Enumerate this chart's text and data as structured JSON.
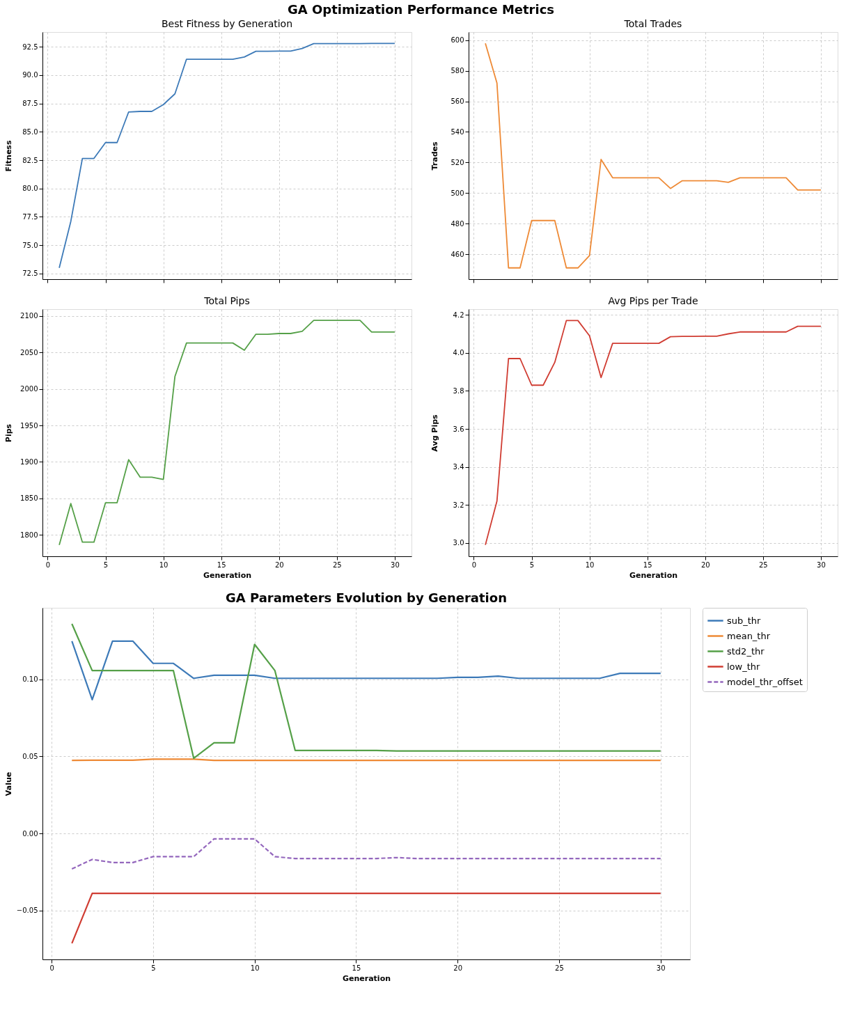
{
  "chart_data": [
    {
      "type": "other",
      "title": "GA Optimization Performance Metrics"
    },
    {
      "type": "line",
      "title": "Best Fitness by Generation",
      "ylabel": "Fitness",
      "x": [
        1,
        2,
        3,
        4,
        5,
        6,
        7,
        8,
        9,
        10,
        11,
        12,
        13,
        14,
        15,
        16,
        17,
        18,
        19,
        20,
        21,
        22,
        23,
        24,
        25,
        26,
        27,
        28,
        29,
        30
      ],
      "series": [
        {
          "color": "#3d7ab8",
          "values": [
            73.0,
            77.1,
            82.65,
            82.65,
            84.05,
            84.05,
            86.75,
            86.8,
            86.8,
            87.4,
            88.35,
            91.4,
            91.4,
            91.4,
            91.4,
            91.4,
            91.6,
            92.1,
            92.1,
            92.12,
            92.12,
            92.35,
            92.78,
            92.78,
            92.78,
            92.78,
            92.78,
            92.8,
            92.8,
            92.8
          ]
        }
      ],
      "xlim": [
        -0.45,
        31.45
      ],
      "xticks": [
        0,
        5,
        10,
        15,
        20,
        25,
        30
      ],
      "ylim": [
        72.0,
        93.8
      ],
      "yticks": [
        72.5,
        {
          "value": 75,
          "label": "75.0"
        },
        77.5,
        {
          "value": 80,
          "label": "80.0"
        },
        82.5,
        {
          "value": 85,
          "label": "85.0"
        },
        87.5,
        {
          "value": 90,
          "label": "90.0"
        },
        92.5
      ],
      "grid": true,
      "tick_labels": "y"
    },
    {
      "type": "line",
      "title": "Total Trades",
      "ylabel": "Trades",
      "x": [
        1,
        2,
        3,
        4,
        5,
        6,
        7,
        8,
        9,
        10,
        11,
        12,
        13,
        14,
        15,
        16,
        17,
        18,
        19,
        20,
        21,
        22,
        23,
        24,
        25,
        26,
        27,
        28,
        29,
        30
      ],
      "series": [
        {
          "color": "#ee8a36",
          "values": [
            598,
            572,
            451,
            451,
            482,
            482,
            482,
            451,
            451,
            459,
            522,
            510,
            510,
            510,
            510,
            510,
            503,
            508,
            508,
            508,
            508,
            507,
            510,
            510,
            510,
            510,
            510,
            502,
            502,
            502
          ]
        }
      ],
      "xlim": [
        -0.45,
        31.45
      ],
      "xticks": [
        0,
        5,
        10,
        15,
        20,
        25,
        30
      ],
      "ylim": [
        443.6,
        605.4
      ],
      "yticks": [
        460,
        480,
        500,
        520,
        540,
        560,
        580,
        600
      ],
      "grid": true,
      "tick_labels": "y"
    },
    {
      "type": "line",
      "title": "Total Pips",
      "xlabel": "Generation",
      "ylabel": "Pips",
      "x": [
        1,
        2,
        3,
        4,
        5,
        6,
        7,
        8,
        9,
        10,
        11,
        12,
        13,
        14,
        15,
        16,
        17,
        18,
        19,
        20,
        21,
        22,
        23,
        24,
        25,
        26,
        27,
        28,
        29,
        30
      ],
      "series": [
        {
          "color": "#55a048",
          "values": [
            1786,
            1843,
            1790,
            1790,
            1844,
            1844,
            1903,
            1879,
            1879,
            1876,
            2017,
            2063,
            2063,
            2063,
            2063,
            2063,
            2053,
            2075,
            2075,
            2076,
            2076,
            2079,
            2094,
            2094,
            2094,
            2094,
            2094,
            2078,
            2078,
            2078
          ]
        }
      ],
      "xlim": [
        -0.45,
        31.45
      ],
      "xticks": [
        0,
        5,
        10,
        15,
        20,
        25,
        30
      ],
      "ylim": [
        1770.6,
        2109.4
      ],
      "yticks": [
        1800,
        1850,
        1900,
        1950,
        2000,
        2050,
        2100
      ],
      "grid": true
    },
    {
      "type": "line",
      "title": "Avg Pips per Trade",
      "xlabel": "Generation",
      "ylabel": "Avg Pips",
      "x": [
        1,
        2,
        3,
        4,
        5,
        6,
        7,
        8,
        9,
        10,
        11,
        12,
        13,
        14,
        15,
        16,
        17,
        18,
        19,
        20,
        21,
        22,
        23,
        24,
        25,
        26,
        27,
        28,
        29,
        30
      ],
      "series": [
        {
          "color": "#d03c32",
          "values": [
            2.99,
            3.22,
            3.97,
            3.97,
            3.83,
            3.83,
            3.95,
            4.17,
            4.17,
            4.09,
            3.87,
            4.05,
            4.05,
            4.05,
            4.05,
            4.05,
            4.085,
            4.087,
            4.087,
            4.088,
            4.088,
            4.1,
            4.11,
            4.11,
            4.11,
            4.11,
            4.11,
            4.14,
            4.14,
            4.14
          ]
        }
      ],
      "xlim": [
        -0.45,
        31.45
      ],
      "xticks": [
        0,
        5,
        10,
        15,
        20,
        25,
        30
      ],
      "ylim": [
        2.93,
        4.23
      ],
      "yticks": [
        {
          "value": 3.0,
          "label": "3.0"
        },
        3.2,
        3.4,
        3.6,
        3.8,
        {
          "value": 4.0,
          "label": "4.0"
        },
        4.2
      ],
      "grid": true
    },
    {
      "type": "line",
      "title": "GA Parameters Evolution by Generation",
      "xlabel": "Generation",
      "ylabel": "Value",
      "x": [
        1,
        2,
        3,
        4,
        5,
        6,
        7,
        8,
        9,
        10,
        11,
        12,
        13,
        14,
        15,
        16,
        17,
        18,
        19,
        20,
        21,
        22,
        23,
        24,
        25,
        26,
        27,
        28,
        29,
        30
      ],
      "series": [
        {
          "name": "sub_thr",
          "color": "#3d7ab8",
          "values": [
            0.1247,
            0.0868,
            0.1247,
            0.1247,
            0.1103,
            0.1103,
            0.1006,
            0.1026,
            0.1026,
            0.1026,
            0.1006,
            0.1006,
            0.1006,
            0.1006,
            0.1006,
            0.1006,
            0.1006,
            0.1006,
            0.1006,
            0.1012,
            0.1012,
            0.102,
            0.1006,
            0.1006,
            0.1006,
            0.1006,
            0.1006,
            0.1038,
            0.1038,
            0.1038
          ]
        },
        {
          "name": "mean_thr",
          "color": "#ee8a36",
          "values": [
            0.0474,
            0.0475,
            0.0475,
            0.0475,
            0.0482,
            0.0482,
            0.0482,
            0.0474,
            0.0474,
            0.0474,
            0.0474,
            0.0474,
            0.0474,
            0.0474,
            0.0474,
            0.0474,
            0.0474,
            0.0474,
            0.0474,
            0.0474,
            0.0474,
            0.0474,
            0.0474,
            0.0474,
            0.0474,
            0.0474,
            0.0474,
            0.0474,
            0.0474,
            0.0474
          ]
        },
        {
          "name": "std2_thr",
          "color": "#55a048",
          "values": [
            0.1359,
            0.1056,
            0.1056,
            0.1056,
            0.1056,
            0.1056,
            0.0488,
            0.0588,
            0.0588,
            0.1226,
            0.1056,
            0.0538,
            0.0538,
            0.0538,
            0.0538,
            0.0538,
            0.0535,
            0.0535,
            0.0535,
            0.0535,
            0.0535,
            0.0535,
            0.0535,
            0.0535,
            0.0535,
            0.0535,
            0.0535,
            0.0535,
            0.0535,
            0.0535
          ]
        },
        {
          "name": "low_thr",
          "color": "#d03c32",
          "values": [
            -0.0712,
            -0.0388,
            -0.0388,
            -0.0388,
            -0.0388,
            -0.0388,
            -0.0388,
            -0.0388,
            -0.0388,
            -0.0388,
            -0.0388,
            -0.0388,
            -0.0388,
            -0.0388,
            -0.0388,
            -0.0388,
            -0.0388,
            -0.0388,
            -0.0388,
            -0.0388,
            -0.0388,
            -0.0388,
            -0.0388,
            -0.0388,
            -0.0388,
            -0.0388,
            -0.0388,
            -0.0388,
            -0.0388,
            -0.0388
          ]
        },
        {
          "name": "model_thr_offset",
          "color": "#9467bd",
          "line_style": "dashed",
          "values": [
            -0.0229,
            -0.0168,
            -0.0188,
            -0.0188,
            -0.015,
            -0.015,
            -0.015,
            -0.0035,
            -0.0035,
            -0.0035,
            -0.015,
            -0.0162,
            -0.0162,
            -0.0162,
            -0.0162,
            -0.0162,
            -0.0156,
            -0.0162,
            -0.0162,
            -0.0162,
            -0.0162,
            -0.0162,
            -0.0162,
            -0.0162,
            -0.0162,
            -0.0162,
            -0.0162,
            -0.0162,
            -0.0162,
            -0.0162
          ]
        }
      ],
      "xlim": [
        -0.45,
        31.45
      ],
      "xticks": [
        0,
        5,
        10,
        15,
        20,
        25,
        30
      ],
      "ylim": [
        -0.0816,
        0.1463
      ],
      "yticks": [
        {
          "value": -0.05,
          "label": "−0.05"
        },
        {
          "value": 0,
          "label": "0.00"
        },
        {
          "value": 0.05,
          "label": "0.05"
        },
        {
          "value": 0.1,
          "label": "0.10"
        }
      ],
      "grid": true,
      "legend": "top right"
    }
  ]
}
